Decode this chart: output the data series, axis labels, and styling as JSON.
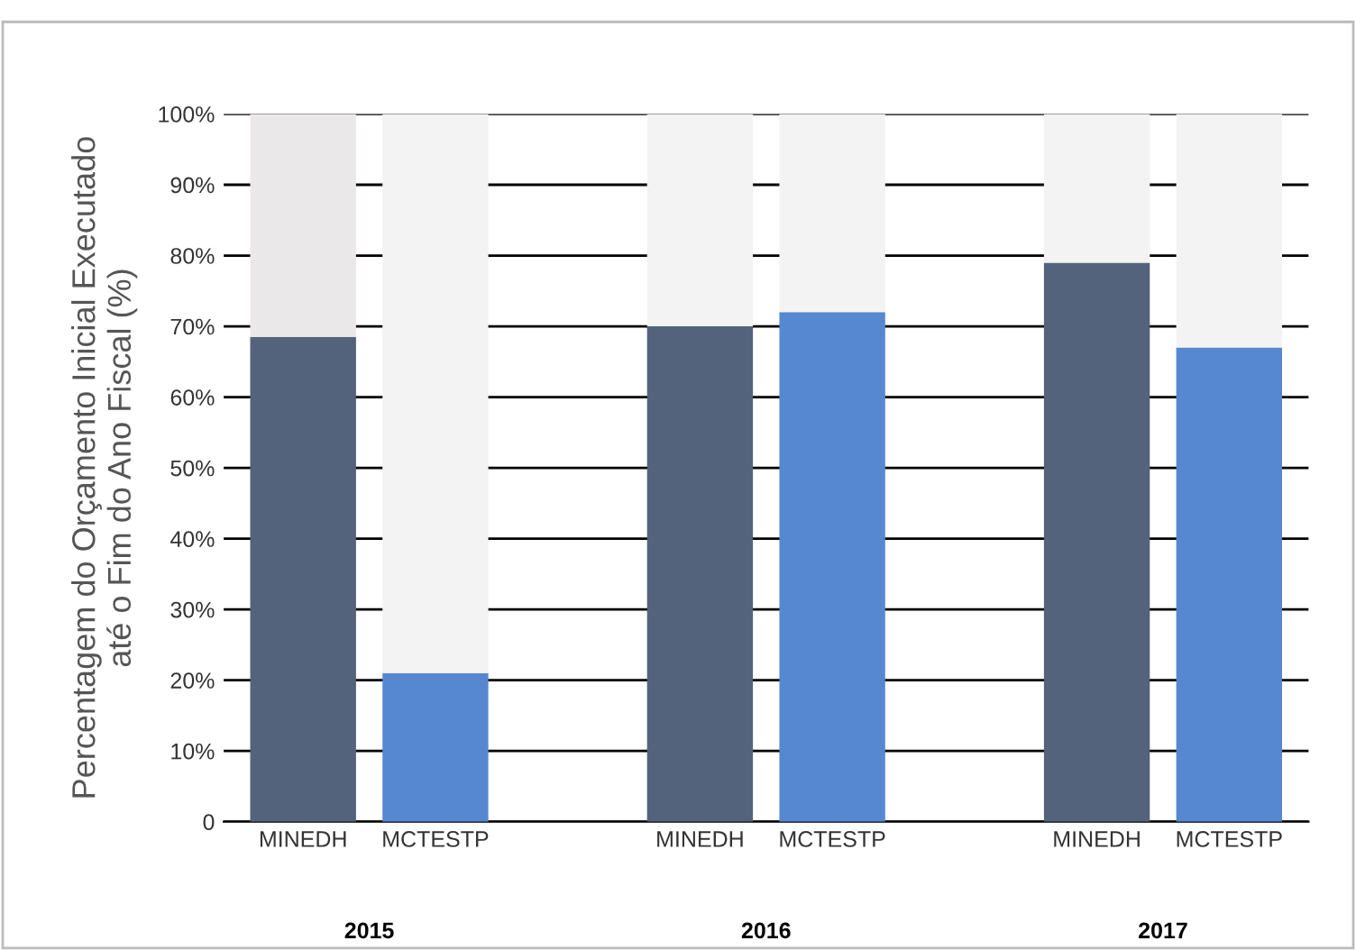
{
  "chart_data": {
    "type": "bar",
    "stacked": true,
    "ylabel": "Percentagem do Orçamento Inicial Executado\naté o Fim do Ano Fiscal (%)",
    "categories": [
      "MINEDH",
      "MCTESTP",
      null,
      "MINEDH",
      "MCTESTP",
      null,
      "MINEDH",
      "MCTESTP"
    ],
    "series": [
      {
        "colors": [
          "#52637b",
          "#5588d1",
          null,
          "#52637b",
          "#5588d1",
          null,
          "#52637b",
          "#5588d1"
        ],
        "values": [
          68.5,
          21,
          null,
          70,
          72,
          null,
          79,
          67
        ]
      },
      {
        "colors": [
          "#ebe8ea",
          "#f3f3f3",
          null,
          "#f3f3f3",
          "#f3f3f3",
          null,
          "#f3f3f3",
          "#f3f3f3"
        ],
        "values": [
          31.5,
          79,
          null,
          30,
          28,
          null,
          21,
          33
        ]
      }
    ],
    "annotations": [
      "2015",
      "2016",
      "2017"
    ],
    "ylim": [
      0,
      100
    ],
    "yticks": [
      0,
      {
        "value": 10,
        "label": "10%"
      },
      {
        "value": 20,
        "label": "20%"
      },
      {
        "value": 30,
        "label": "30%"
      },
      {
        "value": 40,
        "label": "40%"
      },
      {
        "value": 50,
        "label": "50%"
      },
      {
        "value": 60,
        "label": "60%"
      },
      {
        "value": 70,
        "label": "70%"
      },
      {
        "value": 80,
        "label": "80%"
      },
      {
        "value": 90,
        "label": "90%"
      },
      {
        "value": 100,
        "label": "100%"
      }
    ],
    "grid": "y"
  }
}
